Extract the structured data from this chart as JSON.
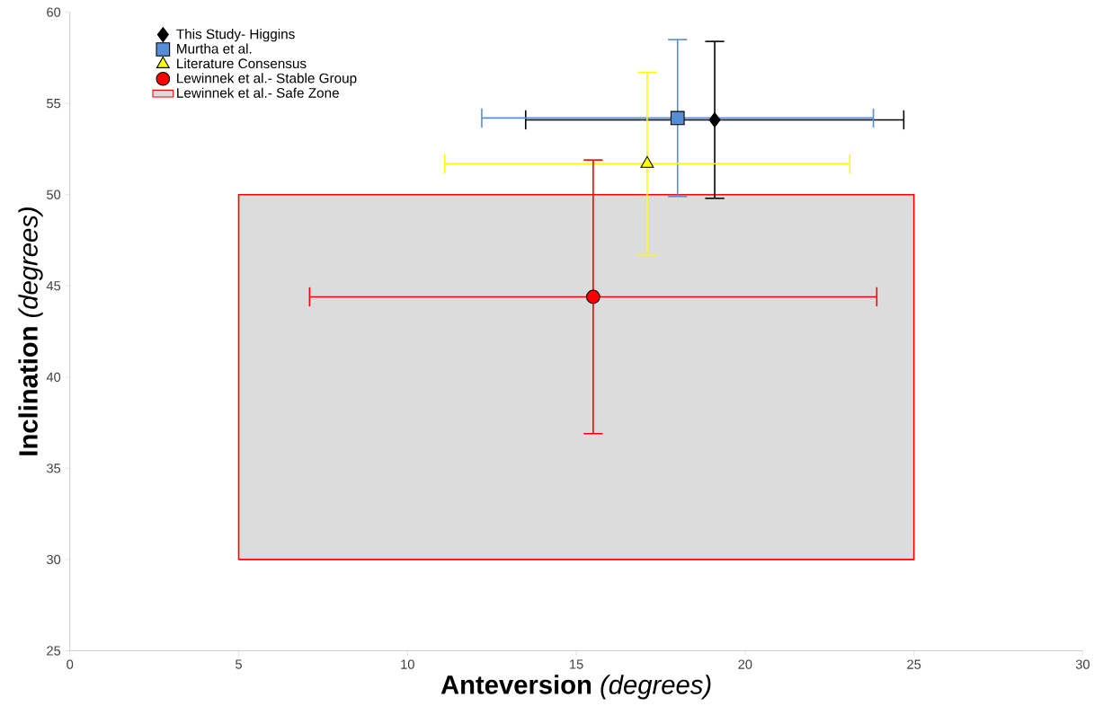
{
  "chart_data": {
    "type": "scatter",
    "xlabel": "**Anteversion** *(degrees)*",
    "ylabel": "**Inclination** *(degrees)*",
    "xlim": [
      0,
      30
    ],
    "ylim": [
      25,
      60
    ],
    "xticks": [
      0,
      5,
      10,
      15,
      20,
      25,
      30
    ],
    "yticks": [
      25,
      30,
      35,
      40,
      45,
      50,
      55,
      60
    ],
    "grid": false,
    "legend": "top left",
    "series": [
      {
        "name": "This Study- Higgins",
        "color": "#000000",
        "marker": "diamond",
        "x": [
          19.1
        ],
        "values": [
          54.1
        ],
        "xerrors": [
          5.6
        ],
        "errors": [
          4.3
        ]
      },
      {
        "name": "Murtha et al.",
        "color": "#558ed5",
        "marker": "square",
        "x": [
          18.0
        ],
        "values": [
          54.2
        ],
        "xerrors": [
          5.8
        ],
        "errors": [
          4.3
        ]
      },
      {
        "name": "Literature Consensus",
        "color": "#ffff00",
        "marker": "triangle",
        "x": [
          17.1
        ],
        "values": [
          51.7
        ],
        "xerrors": [
          6.0
        ],
        "errors": [
          5.0
        ]
      },
      {
        "name": "Lewinnek et al.- Stable Group",
        "color": "#ff0000",
        "marker": "circle",
        "x": [
          15.5
        ],
        "values": [
          44.4
        ],
        "xerrors": [
          8.4
        ],
        "errors": [
          7.5
        ]
      },
      {
        "name": "Lewinnek et al.- Safe Zone",
        "type": "area",
        "color": "#dcdcdc",
        "x": [
          5,
          5,
          25,
          25,
          5
        ],
        "values": [
          30,
          50,
          50,
          30,
          30
        ]
      }
    ]
  }
}
